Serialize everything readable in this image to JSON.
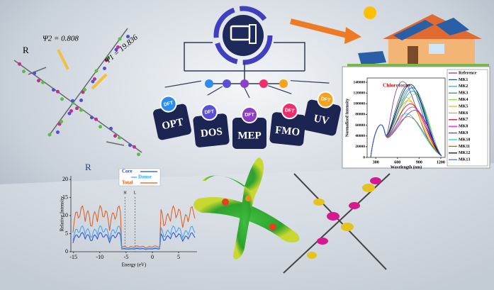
{
  "molecule": {
    "label": "R",
    "psi2": "Ψ2 = 0.808",
    "psi1": "Ψ1 = 19.836"
  },
  "tabs": {
    "badge": "DFT",
    "items": [
      "OPT",
      "DOS",
      "MEP",
      "FMO",
      "UV"
    ]
  },
  "uv_chart": {
    "solvent": "Chloroform",
    "ylabel": "Normalized Intensity",
    "xlabel": "Wavelength (nm)",
    "xlim": [
      180,
      1260
    ],
    "ylim": [
      0,
      148000
    ],
    "yticks": [
      0,
      20000,
      40000,
      60000,
      80000,
      100000,
      120000,
      140000
    ],
    "xticks": [
      300,
      600,
      900,
      1200
    ],
    "legend": [
      "Reference",
      "MK1",
      "MK2",
      "MK3",
      "MK4",
      "MK5",
      "MK6",
      "MK7",
      "MK8",
      "MK9",
      "MK10",
      "MK11",
      "MK12",
      "MK13"
    ],
    "colors": [
      "#7030a0",
      "#1f4e9f",
      "#00b0f0",
      "#00a050",
      "#92d050",
      "#c8c800",
      "#ff9900",
      "#c00000",
      "#ff00ff",
      "#6633cc",
      "#00cccc",
      "#996633",
      "#000000",
      "#3366ff"
    ]
  },
  "dos_chart": {
    "label": "R",
    "legend": [
      "Core",
      "Donor",
      "Total"
    ],
    "legend_colors": [
      "#1f4fd8",
      "#3aa0ff",
      "#e05a1e"
    ],
    "ylabel": "Relative Intensity",
    "xlabel": "Energy (eV)",
    "xlim": [
      -15.5,
      8.5
    ],
    "ylim": [
      0,
      21
    ],
    "yticks": [
      0,
      5,
      10,
      15,
      20
    ],
    "xticks": [
      -15,
      -10,
      -5,
      0,
      5
    ],
    "homo": "H",
    "lumo": "L"
  }
}
